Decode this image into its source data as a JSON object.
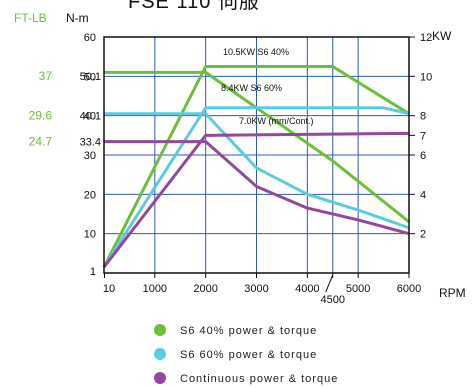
{
  "chart_data": {
    "type": "line",
    "title": "FSE 110 伺服",
    "x_axis": {
      "unit": "RPM",
      "min": 0,
      "max": 6000,
      "ticks": [
        10,
        1000,
        2000,
        3000,
        4000,
        4500,
        5000,
        6000
      ]
    },
    "y_left_nm": {
      "unit": "N-m",
      "ticks": [
        1,
        10,
        20,
        30,
        33.4,
        40,
        40.1,
        50,
        50.1,
        60
      ]
    },
    "y_left_ftlb": {
      "unit": "FT-LB",
      "ticks": [
        {
          "label": "37",
          "at_nm": 50.1
        },
        {
          "label": "29.6",
          "at_nm": 40.1
        },
        {
          "label": "24.7",
          "at_nm": 33.4
        }
      ]
    },
    "y_right_kw": {
      "unit": "KW",
      "min": 0,
      "max": 12,
      "ticks": [
        2,
        4,
        6,
        7,
        8,
        10,
        12
      ]
    },
    "grid": true,
    "series": [
      {
        "name": "S6 40% power & torque",
        "color": "#6cbf3b",
        "torque": {
          "x": [
            0,
            2000,
            4500,
            6000
          ],
          "y": [
            51,
            51,
            28.5,
            13
          ]
        },
        "power": {
          "x": [
            0,
            2000,
            4500,
            6000
          ],
          "y": [
            0.3,
            10.5,
            10.5,
            8.1
          ]
        }
      },
      {
        "name": "S6 60% power & torque",
        "color": "#5ecadf",
        "torque": {
          "x": [
            0,
            2000,
            3000,
            4000,
            5000,
            6000
          ],
          "y": [
            40.5,
            40.5,
            26.7,
            20,
            16,
            11.5
          ]
        },
        "power": {
          "x": [
            0,
            2000,
            5500,
            6000
          ],
          "y": [
            0.3,
            8.4,
            8.4,
            8.1
          ]
        }
      },
      {
        "name": "Continuous power & torque",
        "color": "#93489e",
        "torque": {
          "x": [
            0,
            2000,
            3000,
            4000,
            5000,
            6000
          ],
          "y": [
            33.4,
            33.4,
            22,
            16.5,
            13.5,
            10
          ]
        },
        "power": {
          "x": [
            0,
            2000,
            6000
          ],
          "y": [
            0.3,
            7.0,
            7.1
          ]
        }
      }
    ],
    "annotations": [
      "10.5KW  S6  40%",
      "8.4KW  S6  60%",
      "7.0KW (mm/Cont.)"
    ]
  }
}
